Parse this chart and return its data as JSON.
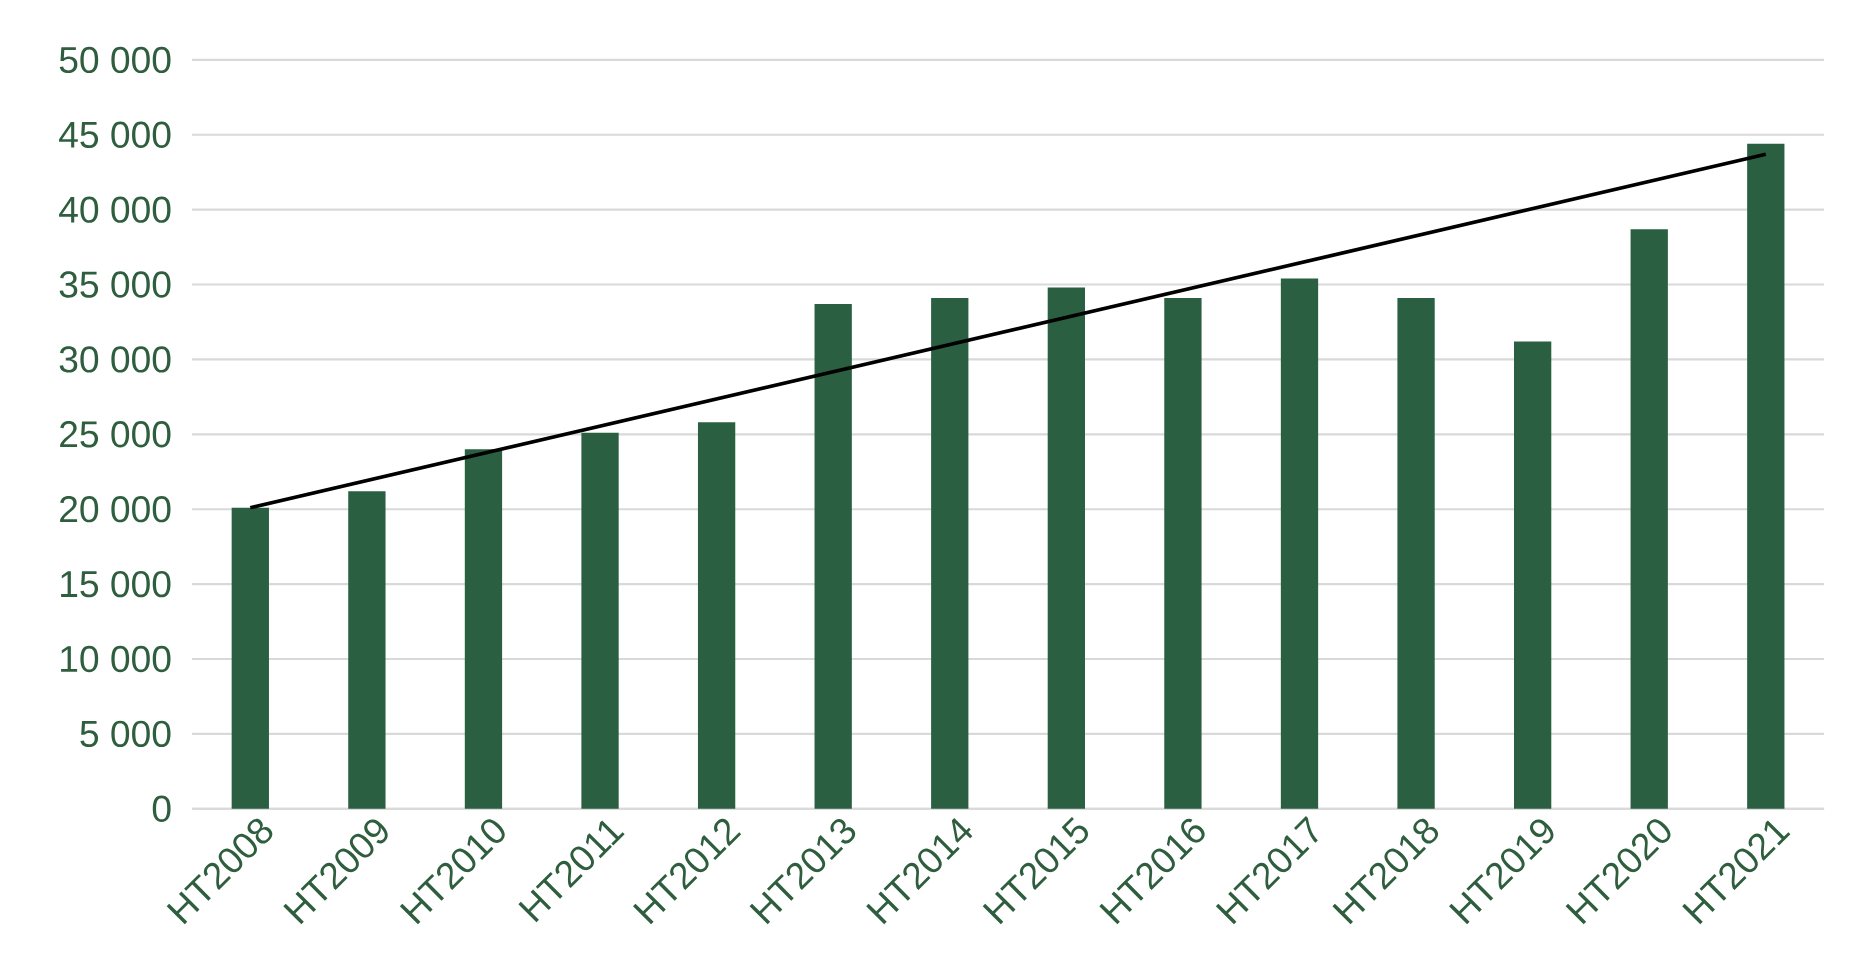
{
  "chart_data": {
    "type": "bar",
    "categories": [
      "HT2008",
      "HT2009",
      "HT2010",
      "HT2011",
      "HT2012",
      "HT2013",
      "HT2014",
      "HT2015",
      "HT2016",
      "HT2017",
      "HT2018",
      "HT2019",
      "HT2020",
      "HT2021"
    ],
    "series": [
      {
        "color": "#2a6041",
        "values": [
          20100,
          21200,
          24000,
          25100,
          25800,
          33700,
          34100,
          34800,
          34100,
          35400,
          34100,
          31200,
          38700,
          44400
        ]
      },
      {
        "type": "line",
        "color": "#000000",
        "x": [
          "HT2008",
          "HT2021"
        ],
        "values": [
          20100,
          43700
        ]
      }
    ],
    "ylim": [
      0,
      50000
    ],
    "yticks": [
      {
        "value": 0,
        "label": "0"
      },
      {
        "value": 5000,
        "label": "5 000"
      },
      {
        "value": 10000,
        "label": "10 000"
      },
      {
        "value": 15000,
        "label": "15 000"
      },
      {
        "value": 20000,
        "label": "20 000"
      },
      {
        "value": 25000,
        "label": "25 000"
      },
      {
        "value": 30000,
        "label": "30 000"
      },
      {
        "value": 35000,
        "label": "35 000"
      },
      {
        "value": 40000,
        "label": "40 000"
      },
      {
        "value": 45000,
        "label": "45 000"
      },
      {
        "value": 50000,
        "label": "50 000"
      }
    ],
    "grid": "y"
  }
}
